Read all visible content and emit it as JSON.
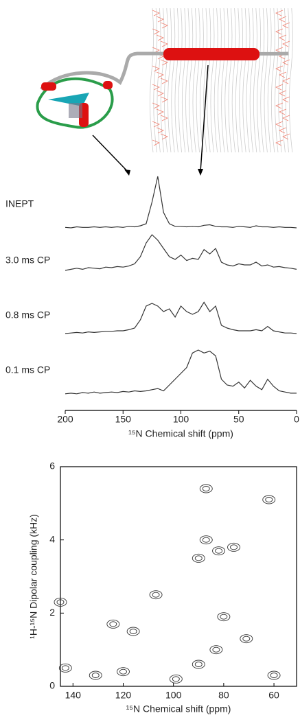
{
  "chart_data": [
    {
      "type": "line",
      "x": [
        200,
        195,
        190,
        185,
        180,
        175,
        170,
        165,
        160,
        155,
        150,
        145,
        140,
        135,
        130,
        125,
        120,
        115,
        110,
        105,
        100,
        95,
        90,
        85,
        80,
        75,
        70,
        65,
        60,
        55,
        50,
        45,
        40,
        35,
        30,
        25,
        20,
        15,
        10,
        5,
        0
      ],
      "series": [
        {
          "name": "INEPT",
          "color": "#333333",
          "values": [
            1,
            0,
            2,
            1,
            1,
            2,
            1,
            2,
            1,
            2,
            1,
            3,
            2,
            4,
            8,
            50,
            100,
            30,
            8,
            3,
            3,
            2,
            3,
            2,
            5,
            6,
            3,
            2,
            2,
            1,
            3,
            2,
            1,
            4,
            2,
            2,
            1,
            2,
            1,
            1,
            0
          ]
        },
        {
          "name": "3.0 ms CP",
          "color": "#333333",
          "values": [
            20,
            22,
            24,
            22,
            25,
            24,
            23,
            26,
            25,
            27,
            26,
            28,
            32,
            45,
            70,
            85,
            75,
            60,
            45,
            40,
            48,
            38,
            42,
            40,
            58,
            50,
            60,
            35,
            30,
            28,
            32,
            30,
            30,
            35,
            28,
            30,
            26,
            27,
            25,
            24,
            22
          ]
        },
        {
          "name": "0.8 ms CP",
          "color": "#333333",
          "values": [
            5,
            6,
            7,
            6,
            8,
            7,
            8,
            9,
            9,
            10,
            10,
            12,
            15,
            30,
            55,
            60,
            55,
            45,
            50,
            35,
            55,
            45,
            40,
            45,
            62,
            45,
            55,
            20,
            15,
            12,
            10,
            10,
            10,
            12,
            10,
            18,
            10,
            8,
            6,
            6,
            5
          ]
        },
        {
          "name": "0.1 ms CP",
          "color": "#333333",
          "values": [
            5,
            6,
            5,
            7,
            6,
            8,
            6,
            7,
            8,
            7,
            9,
            8,
            10,
            9,
            10,
            12,
            14,
            10,
            20,
            30,
            40,
            50,
            75,
            80,
            75,
            78,
            70,
            30,
            20,
            18,
            25,
            15,
            28,
            18,
            12,
            30,
            18,
            10,
            8,
            6,
            6
          ]
        }
      ],
      "xlim": [
        200,
        0
      ],
      "xticks": [
        200,
        150,
        100,
        50,
        0
      ],
      "xlabel": "¹⁵N Chemical shift (ppm)"
    },
    {
      "type": "contour",
      "color": "#333333",
      "x": [
        87,
        82,
        76,
        90,
        116,
        124,
        107,
        145,
        120,
        90,
        80,
        71,
        62,
        87,
        99,
        60,
        131,
        83,
        143
      ],
      "y": [
        4.0,
        3.7,
        3.8,
        3.5,
        1.5,
        1.7,
        2.5,
        2.3,
        0.4,
        0.6,
        1.9,
        1.3,
        5.1,
        5.4,
        0.2,
        0.3,
        0.3,
        1.0,
        0.5
      ],
      "xlim": [
        145,
        51
      ],
      "xticks": [
        140,
        120,
        100,
        80,
        60
      ],
      "ylim": [
        0,
        6
      ],
      "yticks": [
        0,
        2,
        4,
        6
      ],
      "xlabel": "¹⁵N Chemical shift (ppm)",
      "ylabel": "¹H-¹⁵N Dipolar coupling (kHz)"
    }
  ]
}
